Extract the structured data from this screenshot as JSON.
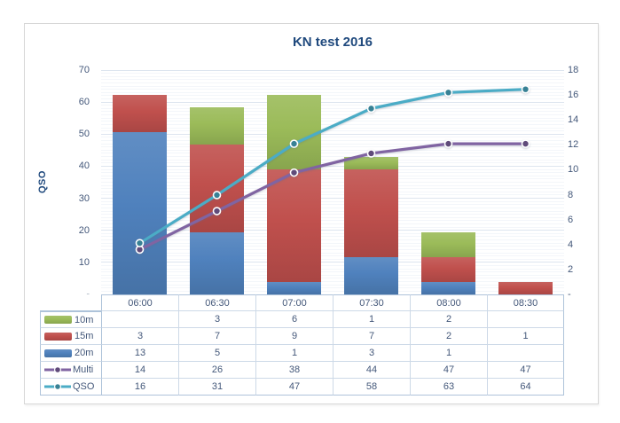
{
  "window": {
    "background": "#ffffff",
    "frame_border": "#d7d7d7"
  },
  "chart_data": {
    "type": "combo_stacked_bar_line",
    "title": "KN test 2016",
    "title_color": "#1F497D",
    "categories": [
      "06:00",
      "06:30",
      "07:00",
      "07:30",
      "08:00",
      "08:30"
    ],
    "bar_series": [
      {
        "name": "20m",
        "color": "#4F81BD",
        "axis": "right",
        "values": [
          13,
          5,
          1,
          3,
          1,
          null
        ]
      },
      {
        "name": "15m",
        "color": "#C0504D",
        "axis": "right",
        "values": [
          3,
          7,
          9,
          7,
          2,
          1
        ]
      },
      {
        "name": "10m",
        "color": "#9BBB59",
        "axis": "right",
        "values": [
          null,
          3,
          6,
          1,
          2,
          null
        ]
      }
    ],
    "line_series": [
      {
        "name": "Multi",
        "color": "#8064A2",
        "axis": "left",
        "values": [
          14,
          26,
          38,
          44,
          47,
          47
        ]
      },
      {
        "name": "QSO",
        "color": "#4BACC6",
        "axis": "left",
        "values": [
          16,
          31,
          47,
          58,
          63,
          64
        ]
      }
    ],
    "left_axis": {
      "title": "QSO",
      "min": 0,
      "max": 70,
      "major": 10,
      "minor": 1,
      "tick_labels": [
        "70",
        "60",
        "50",
        "40",
        "30",
        "20",
        "10",
        "-"
      ]
    },
    "right_axis": {
      "min": 0,
      "max": 18,
      "major": 2,
      "tick_labels": [
        "18",
        "16",
        "14",
        "12",
        "10",
        "8",
        "6",
        "4",
        "2",
        "-"
      ]
    },
    "grid": {
      "major_color": "#dde5ef",
      "minor_color": "#f3f6fa"
    },
    "text_color": "#44587A",
    "legend_table": {
      "row_order": [
        "10m",
        "15m",
        "20m",
        "Multi",
        "QSO"
      ],
      "border_outer": "#aec3da",
      "border_inner": "#cdd9e7",
      "empty_cell": ""
    }
  }
}
